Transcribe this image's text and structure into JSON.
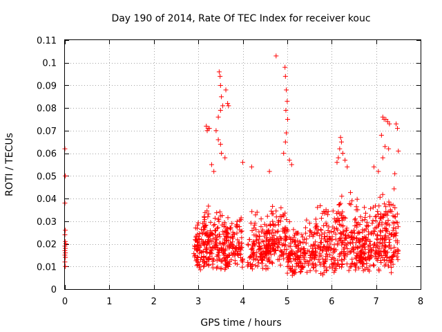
{
  "chart_data": {
    "type": "scatter",
    "title": "Day 190 of 2014, Rate Of TEC Index for receiver kouc",
    "xlabel": "GPS time / hours",
    "ylabel": "ROTI / TECUs",
    "xlim": [
      0,
      8
    ],
    "ylim": [
      0,
      0.11
    ],
    "grid": true,
    "marker": "+",
    "series_color": "#ff0000",
    "x_ticks": [
      0,
      1,
      2,
      3,
      4,
      5,
      6,
      7,
      8
    ],
    "x_tick_labels": [
      "0",
      "1",
      "2",
      "3",
      "4",
      "5",
      "6",
      "7",
      "8"
    ],
    "y_ticks": [
      0,
      0.01,
      0.02,
      0.03,
      0.04,
      0.05,
      0.06,
      0.07,
      0.08,
      0.09,
      0.1,
      0.11
    ],
    "y_tick_labels": [
      "0",
      "0.01",
      "0.02",
      "0.03",
      "0.04",
      "0.05",
      "0.06",
      "0.07",
      "0.08",
      "0.09",
      "0.1",
      "0.11"
    ],
    "series": [
      {
        "name": "ROTI",
        "points": [
          [
            0.0,
            0.062
          ],
          [
            0.01,
            0.05
          ],
          [
            0.0,
            0.038
          ],
          [
            0.01,
            0.026
          ],
          [
            0.0,
            0.024
          ],
          [
            0.01,
            0.021
          ],
          [
            0.0,
            0.019
          ],
          [
            0.01,
            0.018
          ],
          [
            0.0,
            0.017
          ],
          [
            0.01,
            0.016
          ],
          [
            0.0,
            0.015
          ],
          [
            0.01,
            0.014
          ],
          [
            0.0,
            0.012
          ],
          [
            0.01,
            0.01
          ],
          [
            0.02,
            0.02
          ],
          [
            3.18,
            0.072
          ],
          [
            3.22,
            0.071
          ],
          [
            3.2,
            0.07
          ],
          [
            3.25,
            0.071
          ],
          [
            3.47,
            0.096
          ],
          [
            3.49,
            0.094
          ],
          [
            3.5,
            0.09
          ],
          [
            3.52,
            0.085
          ],
          [
            3.55,
            0.081
          ],
          [
            3.5,
            0.079
          ],
          [
            3.45,
            0.076
          ],
          [
            3.62,
            0.088
          ],
          [
            3.66,
            0.082
          ],
          [
            3.68,
            0.081
          ],
          [
            3.4,
            0.07
          ],
          [
            3.45,
            0.066
          ],
          [
            3.5,
            0.064
          ],
          [
            3.3,
            0.055
          ],
          [
            3.6,
            0.058
          ],
          [
            3.52,
            0.06
          ],
          [
            3.35,
            0.052
          ],
          [
            4.0,
            0.056
          ],
          [
            4.2,
            0.054
          ],
          [
            4.6,
            0.052
          ],
          [
            4.75,
            0.103
          ],
          [
            4.95,
            0.098
          ],
          [
            4.96,
            0.094
          ],
          [
            4.98,
            0.088
          ],
          [
            5.0,
            0.083
          ],
          [
            4.97,
            0.079
          ],
          [
            5.01,
            0.075
          ],
          [
            4.98,
            0.069
          ],
          [
            4.96,
            0.065
          ],
          [
            4.92,
            0.06
          ],
          [
            5.05,
            0.057
          ],
          [
            5.1,
            0.055
          ],
          [
            6.2,
            0.067
          ],
          [
            6.22,
            0.065
          ],
          [
            6.18,
            0.062
          ],
          [
            6.25,
            0.06
          ],
          [
            6.15,
            0.058
          ],
          [
            6.3,
            0.057
          ],
          [
            6.12,
            0.056
          ],
          [
            6.35,
            0.054
          ],
          [
            7.15,
            0.076
          ],
          [
            7.18,
            0.075
          ],
          [
            7.22,
            0.075
          ],
          [
            7.26,
            0.074
          ],
          [
            7.3,
            0.073
          ],
          [
            7.45,
            0.073
          ],
          [
            7.48,
            0.071
          ],
          [
            7.12,
            0.068
          ],
          [
            7.2,
            0.063
          ],
          [
            7.28,
            0.062
          ],
          [
            7.5,
            0.061
          ],
          [
            7.15,
            0.058
          ],
          [
            6.95,
            0.054
          ],
          [
            7.05,
            0.052
          ],
          [
            7.42,
            0.051
          ]
        ]
      }
    ]
  }
}
